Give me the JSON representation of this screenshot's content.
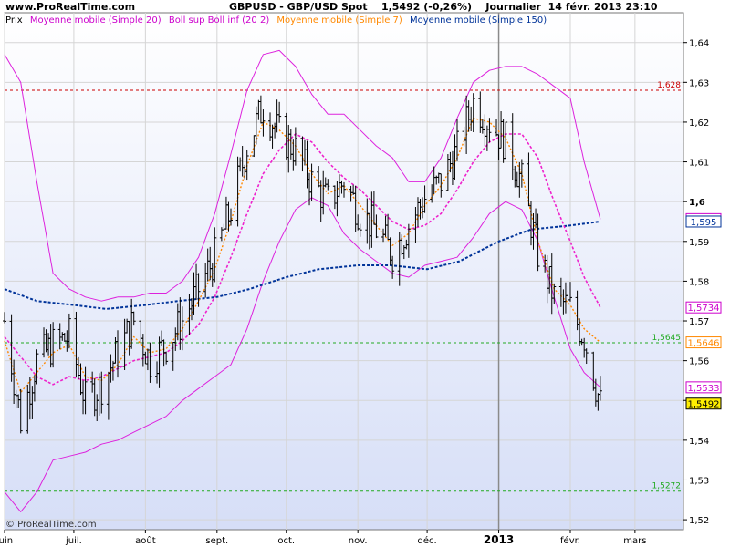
{
  "header": {
    "site": "www.ProRealTime.com",
    "symbol": "GBPUSD - GBP/USD Spot",
    "last": "1,5492",
    "change": "(-0,26%)",
    "period": "Journalier",
    "datetime": "14 févr. 2013 23:10"
  },
  "legend": [
    {
      "label": "Prix",
      "color": "#000000"
    },
    {
      "label": "Moyenne mobile (Simple 20)",
      "color": "#cc00cc"
    },
    {
      "label": "Boll sup Boll inf (20 2)",
      "color": "#cc00cc"
    },
    {
      "label": "Moyenne mobile (Simple 7)",
      "color": "#ff8800"
    },
    {
      "label": "Moyenne mobile (Simple 150)",
      "color": "#003399"
    }
  ],
  "credit": "© ProRealTime.com",
  "chart_data": {
    "type": "line",
    "title": "GBPUSD - GBP/USD Spot",
    "x_range": [
      "2012-06-01",
      "2013-03-22"
    ],
    "ylim": [
      1.5175,
      1.6475
    ],
    "grid": true,
    "y_ticks": [
      {
        "v": 1.52,
        "label": "1,52"
      },
      {
        "v": 1.53,
        "label": "1,53"
      },
      {
        "v": 1.54,
        "label": "1,54"
      },
      {
        "v": 1.55,
        "label": "1,55"
      },
      {
        "v": 1.56,
        "label": "1,56"
      },
      {
        "v": 1.57,
        "label": "1,57"
      },
      {
        "v": 1.58,
        "label": "1,58"
      },
      {
        "v": 1.59,
        "label": "1,59"
      },
      {
        "v": 1.6,
        "label": "1,6",
        "bold": true
      },
      {
        "v": 1.61,
        "label": "1,61"
      },
      {
        "v": 1.62,
        "label": "1,62"
      },
      {
        "v": 1.63,
        "label": "1,63"
      },
      {
        "v": 1.64,
        "label": "1,64"
      }
    ],
    "x_ticks": [
      {
        "date": "2012-06-01",
        "label": "juin"
      },
      {
        "date": "2012-07-01",
        "label": "juil."
      },
      {
        "date": "2012-08-01",
        "label": "août"
      },
      {
        "date": "2012-09-01",
        "label": "sept."
      },
      {
        "date": "2012-10-01",
        "label": "oct."
      },
      {
        "date": "2012-11-01",
        "label": "nov."
      },
      {
        "date": "2012-12-01",
        "label": "déc."
      },
      {
        "date": "2013-01-01",
        "label": "2013",
        "bold": true,
        "line": true
      },
      {
        "date": "2013-02-01",
        "label": "févr."
      },
      {
        "date": "2013-03-01",
        "label": "mars"
      }
    ],
    "h_lines": [
      {
        "value": 1.628,
        "label": "1,628",
        "color": "#cc0000"
      },
      {
        "value": 1.5645,
        "label": "1,5645",
        "color": "#22aa22"
      },
      {
        "value": 1.5272,
        "label": "1,5272",
        "color": "#22aa22"
      }
    ],
    "price_tags": [
      {
        "value": 1.5956,
        "label": "1,5956",
        "color": "#cc00cc"
      },
      {
        "value": 1.595,
        "label": "1,595",
        "color": "#003399"
      },
      {
        "value": 1.5734,
        "label": "1,5734",
        "color": "#cc00cc"
      },
      {
        "value": 1.5646,
        "label": "1,5646",
        "color": "#ff8800"
      },
      {
        "value": 1.5533,
        "label": "1,5533",
        "color": "#cc00cc"
      },
      {
        "value": 1.5492,
        "label": "1,5492",
        "color": "#000000",
        "bg": "#ffee00"
      }
    ],
    "price_anchors": [
      [
        "2012-06-01",
        1.57
      ],
      [
        "2012-06-08",
        1.545
      ],
      [
        "2012-06-15",
        1.56
      ],
      [
        "2012-06-22",
        1.564
      ],
      [
        "2012-06-29",
        1.566
      ],
      [
        "2012-07-06",
        1.55
      ],
      [
        "2012-07-13",
        1.554
      ],
      [
        "2012-07-20",
        1.562
      ],
      [
        "2012-07-27",
        1.57
      ],
      [
        "2012-08-03",
        1.56
      ],
      [
        "2012-08-10",
        1.564
      ],
      [
        "2012-08-17",
        1.57
      ],
      [
        "2012-08-24",
        1.578
      ],
      [
        "2012-08-31",
        1.586
      ],
      [
        "2012-09-07",
        1.598
      ],
      [
        "2012-09-14",
        1.614
      ],
      [
        "2012-09-21",
        1.624
      ],
      [
        "2012-09-28",
        1.617
      ],
      [
        "2012-10-05",
        1.613
      ],
      [
        "2012-10-12",
        1.605
      ],
      [
        "2012-10-19",
        1.6
      ],
      [
        "2012-10-26",
        1.605
      ],
      [
        "2012-11-02",
        1.597
      ],
      [
        "2012-11-09",
        1.593
      ],
      [
        "2012-11-16",
        1.587
      ],
      [
        "2012-11-23",
        1.594
      ],
      [
        "2012-11-30",
        1.601
      ],
      [
        "2012-12-07",
        1.605
      ],
      [
        "2012-12-14",
        1.613
      ],
      [
        "2012-12-21",
        1.625
      ],
      [
        "2012-12-28",
        1.62
      ],
      [
        "2013-01-04",
        1.615
      ],
      [
        "2013-01-11",
        1.605
      ],
      [
        "2013-01-18",
        1.587
      ],
      [
        "2013-01-25",
        1.576
      ],
      [
        "2013-02-01",
        1.573
      ],
      [
        "2013-02-07",
        1.566
      ],
      [
        "2013-02-14",
        1.549
      ]
    ],
    "sma7": [
      [
        "2012-06-01",
        1.565
      ],
      [
        "2012-06-08",
        1.552
      ],
      [
        "2012-06-15",
        1.557
      ],
      [
        "2012-06-22",
        1.562
      ],
      [
        "2012-06-29",
        1.564
      ],
      [
        "2012-07-06",
        1.556
      ],
      [
        "2012-07-13",
        1.555
      ],
      [
        "2012-07-20",
        1.559
      ],
      [
        "2012-07-27",
        1.566
      ],
      [
        "2012-08-03",
        1.562
      ],
      [
        "2012-08-10",
        1.563
      ],
      [
        "2012-08-17",
        1.568
      ],
      [
        "2012-08-24",
        1.575
      ],
      [
        "2012-08-31",
        1.583
      ],
      [
        "2012-09-07",
        1.595
      ],
      [
        "2012-09-14",
        1.609
      ],
      [
        "2012-09-21",
        1.62
      ],
      [
        "2012-09-28",
        1.618
      ],
      [
        "2012-10-05",
        1.614
      ],
      [
        "2012-10-12",
        1.607
      ],
      [
        "2012-10-19",
        1.602
      ],
      [
        "2012-10-26",
        1.604
      ],
      [
        "2012-11-02",
        1.599
      ],
      [
        "2012-11-09",
        1.594
      ],
      [
        "2012-11-16",
        1.589
      ],
      [
        "2012-11-23",
        1.592
      ],
      [
        "2012-11-30",
        1.599
      ],
      [
        "2012-12-07",
        1.604
      ],
      [
        "2012-12-14",
        1.611
      ],
      [
        "2012-12-21",
        1.621
      ],
      [
        "2012-12-28",
        1.62
      ],
      [
        "2013-01-04",
        1.616
      ],
      [
        "2013-01-11",
        1.607
      ],
      [
        "2013-01-18",
        1.59
      ],
      [
        "2013-01-25",
        1.578
      ],
      [
        "2013-02-01",
        1.574
      ],
      [
        "2013-02-07",
        1.568
      ],
      [
        "2013-02-14",
        1.5646
      ]
    ],
    "sma20": [
      [
        "2012-06-01",
        1.566
      ],
      [
        "2012-06-08",
        1.561
      ],
      [
        "2012-06-15",
        1.556
      ],
      [
        "2012-06-22",
        1.554
      ],
      [
        "2012-06-29",
        1.556
      ],
      [
        "2012-07-06",
        1.555
      ],
      [
        "2012-07-13",
        1.556
      ],
      [
        "2012-07-20",
        1.558
      ],
      [
        "2012-07-27",
        1.56
      ],
      [
        "2012-08-03",
        1.561
      ],
      [
        "2012-08-10",
        1.562
      ],
      [
        "2012-08-17",
        1.565
      ],
      [
        "2012-08-24",
        1.569
      ],
      [
        "2012-08-31",
        1.576
      ],
      [
        "2012-09-07",
        1.586
      ],
      [
        "2012-09-14",
        1.597
      ],
      [
        "2012-09-21",
        1.607
      ],
      [
        "2012-09-28",
        1.613
      ],
      [
        "2012-10-05",
        1.617
      ],
      [
        "2012-10-12",
        1.615
      ],
      [
        "2012-10-19",
        1.61
      ],
      [
        "2012-10-26",
        1.606
      ],
      [
        "2012-11-02",
        1.603
      ],
      [
        "2012-11-09",
        1.599
      ],
      [
        "2012-11-16",
        1.595
      ],
      [
        "2012-11-23",
        1.593
      ],
      [
        "2012-11-30",
        1.594
      ],
      [
        "2012-12-07",
        1.597
      ],
      [
        "2012-12-14",
        1.603
      ],
      [
        "2012-12-21",
        1.61
      ],
      [
        "2012-12-28",
        1.615
      ],
      [
        "2013-01-04",
        1.617
      ],
      [
        "2013-01-11",
        1.617
      ],
      [
        "2013-01-18",
        1.611
      ],
      [
        "2013-01-25",
        1.6
      ],
      [
        "2013-02-01",
        1.59
      ],
      [
        "2013-02-07",
        1.581
      ],
      [
        "2013-02-14",
        1.5734
      ]
    ],
    "boll_upper": [
      [
        "2012-06-01",
        1.637
      ],
      [
        "2012-06-08",
        1.63
      ],
      [
        "2012-06-15",
        1.605
      ],
      [
        "2012-06-22",
        1.582
      ],
      [
        "2012-06-29",
        1.578
      ],
      [
        "2012-07-06",
        1.576
      ],
      [
        "2012-07-13",
        1.575
      ],
      [
        "2012-07-20",
        1.576
      ],
      [
        "2012-07-27",
        1.576
      ],
      [
        "2012-08-03",
        1.577
      ],
      [
        "2012-08-10",
        1.577
      ],
      [
        "2012-08-17",
        1.58
      ],
      [
        "2012-08-24",
        1.586
      ],
      [
        "2012-08-31",
        1.597
      ],
      [
        "2012-09-07",
        1.612
      ],
      [
        "2012-09-14",
        1.628
      ],
      [
        "2012-09-21",
        1.637
      ],
      [
        "2012-09-28",
        1.638
      ],
      [
        "2012-10-05",
        1.634
      ],
      [
        "2012-10-12",
        1.627
      ],
      [
        "2012-10-19",
        1.622
      ],
      [
        "2012-10-26",
        1.622
      ],
      [
        "2012-11-02",
        1.618
      ],
      [
        "2012-11-09",
        1.614
      ],
      [
        "2012-11-16",
        1.611
      ],
      [
        "2012-11-23",
        1.605
      ],
      [
        "2012-11-30",
        1.605
      ],
      [
        "2012-12-07",
        1.611
      ],
      [
        "2012-12-14",
        1.621
      ],
      [
        "2012-12-21",
        1.63
      ],
      [
        "2012-12-28",
        1.633
      ],
      [
        "2013-01-04",
        1.634
      ],
      [
        "2013-01-11",
        1.634
      ],
      [
        "2013-01-18",
        1.632
      ],
      [
        "2013-01-25",
        1.629
      ],
      [
        "2013-02-01",
        1.626
      ],
      [
        "2013-02-07",
        1.61
      ],
      [
        "2013-02-14",
        1.5956
      ]
    ],
    "boll_lower": [
      [
        "2012-06-01",
        1.527
      ],
      [
        "2012-06-08",
        1.522
      ],
      [
        "2012-06-15",
        1.527
      ],
      [
        "2012-06-22",
        1.535
      ],
      [
        "2012-06-29",
        1.536
      ],
      [
        "2012-07-06",
        1.537
      ],
      [
        "2012-07-13",
        1.539
      ],
      [
        "2012-07-20",
        1.54
      ],
      [
        "2012-07-27",
        1.542
      ],
      [
        "2012-08-03",
        1.544
      ],
      [
        "2012-08-10",
        1.546
      ],
      [
        "2012-08-17",
        1.55
      ],
      [
        "2012-08-24",
        1.553
      ],
      [
        "2012-08-31",
        1.556
      ],
      [
        "2012-09-07",
        1.559
      ],
      [
        "2012-09-14",
        1.568
      ],
      [
        "2012-09-21",
        1.58
      ],
      [
        "2012-09-28",
        1.59
      ],
      [
        "2012-10-05",
        1.598
      ],
      [
        "2012-10-12",
        1.601
      ],
      [
        "2012-10-19",
        1.599
      ],
      [
        "2012-10-26",
        1.592
      ],
      [
        "2012-11-02",
        1.588
      ],
      [
        "2012-11-09",
        1.585
      ],
      [
        "2012-11-16",
        1.582
      ],
      [
        "2012-11-23",
        1.581
      ],
      [
        "2012-11-30",
        1.584
      ],
      [
        "2012-12-07",
        1.585
      ],
      [
        "2012-12-14",
        1.586
      ],
      [
        "2012-12-21",
        1.591
      ],
      [
        "2012-12-28",
        1.597
      ],
      [
        "2013-01-04",
        1.6
      ],
      [
        "2013-01-11",
        1.598
      ],
      [
        "2013-01-18",
        1.59
      ],
      [
        "2013-01-25",
        1.576
      ],
      [
        "2013-02-01",
        1.563
      ],
      [
        "2013-02-07",
        1.557
      ],
      [
        "2013-02-14",
        1.5533
      ]
    ],
    "sma150": [
      [
        "2012-06-01",
        1.578
      ],
      [
        "2012-06-15",
        1.575
      ],
      [
        "2012-07-01",
        1.574
      ],
      [
        "2012-07-15",
        1.573
      ],
      [
        "2012-08-01",
        1.574
      ],
      [
        "2012-08-15",
        1.575
      ],
      [
        "2012-09-01",
        1.576
      ],
      [
        "2012-09-15",
        1.578
      ],
      [
        "2012-10-01",
        1.581
      ],
      [
        "2012-10-15",
        1.583
      ],
      [
        "2012-11-01",
        1.584
      ],
      [
        "2012-11-15",
        1.584
      ],
      [
        "2012-12-01",
        1.583
      ],
      [
        "2012-12-15",
        1.585
      ],
      [
        "2013-01-01",
        1.59
      ],
      [
        "2013-01-15",
        1.593
      ],
      [
        "2013-02-01",
        1.594
      ],
      [
        "2013-02-14",
        1.595
      ]
    ]
  }
}
